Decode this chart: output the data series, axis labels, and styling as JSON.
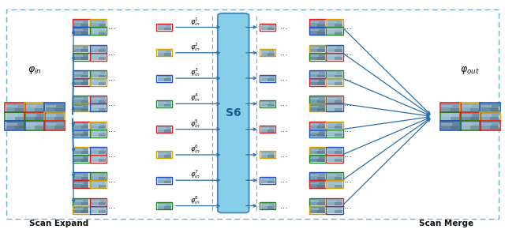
{
  "fig_width": 6.4,
  "fig_height": 2.95,
  "dpi": 100,
  "bg_color": "#ffffff",
  "border_color": "#7ab8d4",
  "s6_color": "#87CEEB",
  "s6_edge_color": "#4a90b8",
  "s6_label": "S6",
  "s6_fontsize": 10,
  "arrow_color": "#2a6fa8",
  "arrow_lw": 0.9,
  "phi_in_label": "$\\varphi_{in}$",
  "phi_out_label": "$\\varphi_{out}$",
  "scan_expand_label": "Scan Expand",
  "scan_merge_label": "Scan Merge",
  "n_rows": 8,
  "row_labels": [
    "$\\varphi_{in}^{1}$",
    "$\\varphi_{in}^{2}$",
    "$\\varphi_{in}^{3}$",
    "$\\varphi_{in}^{4}$",
    "$\\varphi_{in}^{5}$",
    "$\\varphi_{in}^{6}$",
    "$\\varphi_{in}^{7}$",
    "$\\varphi_{in}^{8}$"
  ],
  "border_colors": [
    "#d42020",
    "#d4a000",
    "#2050c0",
    "#208020"
  ],
  "tile_img_colors": [
    "#7a9fb5",
    "#8aafc5",
    "#6a8fa5",
    "#9abfcf",
    "#7090aa",
    "#85a5bb",
    "#6585a0",
    "#9ab5c5"
  ],
  "dashed_color": "#6aaed0",
  "dots_fontsize": 8,
  "label_fontsize": 6,
  "phi_fontsize": 9
}
